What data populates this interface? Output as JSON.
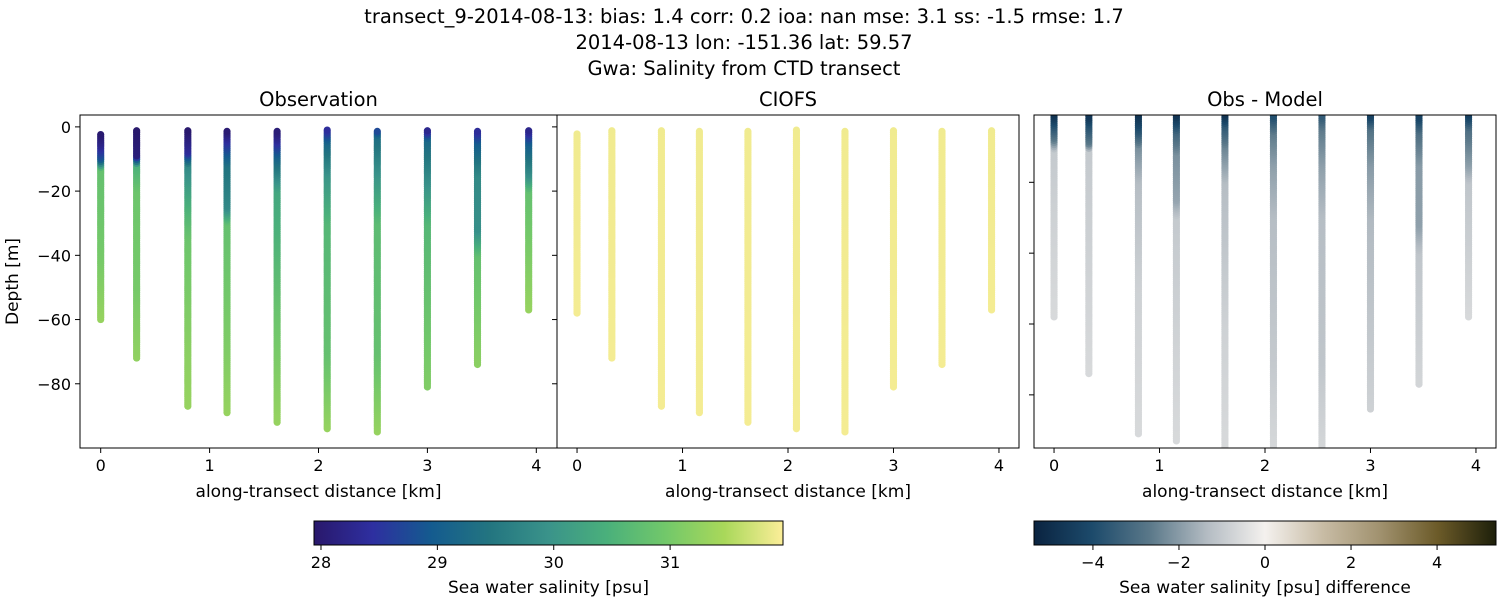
{
  "title_lines": [
    "transect_9-2014-08-13: bias: 1.4  corr: 0.2  ioa: nan  mse: 3.1  ss: -1.5  rmse: 1.7",
    "2014-08-13 lon: -151.36 lat: 59.57",
    "Gwa: Salinity from CTD transect"
  ],
  "colors": {
    "salinity_cmap": [
      "#29186b",
      "#2e2fa0",
      "#145b8f",
      "#237580",
      "#3a938a",
      "#4ab07b",
      "#72c86a",
      "#a9d85a",
      "#fcee99"
    ],
    "difference_cmap": [
      "#0a2340",
      "#1c4a6b",
      "#5a7889",
      "#b4bcc3",
      "#f4f1ee",
      "#c8bca5",
      "#a0916e",
      "#6b5a28",
      "#1d1f0a"
    ]
  },
  "chart_data": [
    {
      "type": "scatter",
      "title": "Observation",
      "xlabel": "along-transect distance [km]",
      "ylabel": "Depth [m]",
      "xlim": [
        -0.19,
        4.19
      ],
      "ylim": [
        -100,
        3.7
      ],
      "xticks": [
        0,
        1,
        2,
        3,
        4
      ],
      "yticks": [
        0,
        -20,
        -40,
        -60,
        -80
      ],
      "ytick_labels": [
        "0",
        "−20",
        "−40",
        "−60",
        "−80"
      ],
      "color_variable": "salinity",
      "casts": [
        {
          "x": 0.0,
          "profile": [
            [
              -2,
              27.95
            ],
            [
              -6,
              28.3
            ],
            [
              -10,
              28.9
            ],
            [
              -13,
              30.8
            ],
            [
              -40,
              31.0
            ],
            [
              -60,
              31.3
            ]
          ]
        },
        {
          "x": 0.33,
          "profile": [
            [
              -1,
              27.95
            ],
            [
              -9,
              28.1
            ],
            [
              -12,
              30.5
            ],
            [
              -20,
              30.9
            ],
            [
              -50,
              31.0
            ],
            [
              -72,
              31.25
            ]
          ]
        },
        {
          "x": 0.8,
          "profile": [
            [
              -1,
              27.95
            ],
            [
              -8,
              28.4
            ],
            [
              -12,
              29.8
            ],
            [
              -25,
              30.5
            ],
            [
              -35,
              30.9
            ],
            [
              -70,
              31.2
            ],
            [
              -87,
              31.3
            ]
          ]
        },
        {
          "x": 1.16,
          "profile": [
            [
              -1,
              27.95
            ],
            [
              -5,
              28.5
            ],
            [
              -12,
              29.4
            ],
            [
              -25,
              29.8
            ],
            [
              -30,
              30.8
            ],
            [
              -70,
              31.1
            ],
            [
              -89,
              31.3
            ]
          ]
        },
        {
          "x": 1.62,
          "profile": [
            [
              -1,
              28.0
            ],
            [
              -4,
              28.3
            ],
            [
              -10,
              29.2
            ],
            [
              -20,
              30.3
            ],
            [
              -60,
              30.9
            ],
            [
              -92,
              31.3
            ]
          ]
        },
        {
          "x": 2.08,
          "profile": [
            [
              -1,
              28.4
            ],
            [
              -5,
              29.2
            ],
            [
              -15,
              30.0
            ],
            [
              -30,
              30.6
            ],
            [
              -70,
              30.8
            ],
            [
              -94,
              31.3
            ]
          ]
        },
        {
          "x": 2.54,
          "profile": [
            [
              -1,
              28.6
            ],
            [
              -3,
              29.3
            ],
            [
              -15,
              30.0
            ],
            [
              -30,
              30.7
            ],
            [
              -70,
              30.8
            ],
            [
              -95,
              31.3
            ]
          ]
        },
        {
          "x": 3.0,
          "profile": [
            [
              -1,
              28.2
            ],
            [
              -4,
              29.2
            ],
            [
              -15,
              29.8
            ],
            [
              -30,
              30.6
            ],
            [
              -81,
              31.1
            ]
          ]
        },
        {
          "x": 3.46,
          "profile": [
            [
              -1,
              28.3
            ],
            [
              -5,
              29.0
            ],
            [
              -15,
              29.8
            ],
            [
              -32,
              29.9
            ],
            [
              -40,
              30.8
            ],
            [
              -74,
              31.2
            ]
          ]
        },
        {
          "x": 3.93,
          "profile": [
            [
              -1,
              28.2
            ],
            [
              -5,
              29.0
            ],
            [
              -15,
              29.9
            ],
            [
              -20,
              30.8
            ],
            [
              -57,
              31.3
            ]
          ]
        }
      ]
    },
    {
      "type": "scatter",
      "title": "CIOFS",
      "xlabel": "along-transect distance [km]",
      "xlim": [
        -0.19,
        4.19
      ],
      "ylim": [
        -100,
        3.7
      ],
      "xticks": [
        0,
        1,
        2,
        3,
        4
      ],
      "yticks": [
        0,
        -20,
        -40,
        -60,
        -80
      ],
      "color_variable": "salinity",
      "casts": [
        {
          "x": 0.0,
          "profile": [
            [
              -2,
              31.9
            ],
            [
              -58,
              31.92
            ]
          ]
        },
        {
          "x": 0.33,
          "profile": [
            [
              -1,
              31.9
            ],
            [
              -72,
              31.92
            ]
          ]
        },
        {
          "x": 0.8,
          "profile": [
            [
              -1,
              31.9
            ],
            [
              -87,
              31.92
            ]
          ]
        },
        {
          "x": 1.16,
          "profile": [
            [
              -1,
              31.9
            ],
            [
              -89,
              31.92
            ]
          ]
        },
        {
          "x": 1.62,
          "profile": [
            [
              -1,
              31.9
            ],
            [
              -92,
              31.92
            ]
          ]
        },
        {
          "x": 2.08,
          "profile": [
            [
              -1,
              31.9
            ],
            [
              -94,
              31.92
            ]
          ]
        },
        {
          "x": 2.54,
          "profile": [
            [
              -1,
              31.9
            ],
            [
              -95,
              31.92
            ]
          ]
        },
        {
          "x": 3.0,
          "profile": [
            [
              -1,
              31.9
            ],
            [
              -81,
              31.92
            ]
          ]
        },
        {
          "x": 3.46,
          "profile": [
            [
              -1,
              31.9
            ],
            [
              -74,
              31.92
            ]
          ]
        },
        {
          "x": 3.93,
          "profile": [
            [
              -1,
              31.9
            ],
            [
              -57,
              31.92
            ]
          ]
        }
      ]
    },
    {
      "type": "scatter",
      "title": "Obs - Model",
      "xlabel": "along-transect distance [km]",
      "xlim": [
        -0.19,
        4.19
      ],
      "ylim": [
        -95,
        -1
      ],
      "xticks": [
        0,
        1,
        2,
        3,
        4
      ],
      "yticks": [
        -20,
        -40,
        -60,
        -80
      ],
      "color_variable": "difference",
      "casts": [
        {
          "x": 0.0,
          "profile": [
            [
              -1,
              -4.8
            ],
            [
              -4,
              -3.8
            ],
            [
              -8,
              -2.6
            ],
            [
              -11,
              -1.0
            ],
            [
              -30,
              -0.8
            ],
            [
              -58,
              -0.6
            ]
          ]
        },
        {
          "x": 0.33,
          "profile": [
            [
              -1,
              -4.8
            ],
            [
              -4,
              -3.8
            ],
            [
              -9,
              -2.6
            ],
            [
              -11,
              -1.0
            ],
            [
              -40,
              -0.8
            ],
            [
              -74,
              -0.6
            ]
          ]
        },
        {
          "x": 0.8,
          "profile": [
            [
              -1,
              -4.8
            ],
            [
              -6,
              -3.6
            ],
            [
              -10,
              -2.2
            ],
            [
              -20,
              -1.3
            ],
            [
              -50,
              -0.8
            ],
            [
              -91,
              -0.6
            ]
          ]
        },
        {
          "x": 1.16,
          "profile": [
            [
              -1,
              -4.8
            ],
            [
              -6,
              -3.2
            ],
            [
              -12,
              -2.2
            ],
            [
              -25,
              -1.8
            ],
            [
              -30,
              -1.0
            ],
            [
              -60,
              -0.8
            ],
            [
              -93,
              -0.6
            ]
          ]
        },
        {
          "x": 1.62,
          "profile": [
            [
              -1,
              -4.8
            ],
            [
              -4,
              -3.6
            ],
            [
              -10,
              -2.4
            ],
            [
              -20,
              -1.3
            ],
            [
              -60,
              -0.8
            ],
            [
              -97,
              -0.6
            ]
          ]
        },
        {
          "x": 2.08,
          "profile": [
            [
              -1,
              -4.0
            ],
            [
              -6,
              -2.6
            ],
            [
              -15,
              -1.9
            ],
            [
              -30,
              -1.3
            ],
            [
              -70,
              -1.0
            ],
            [
              -98,
              -0.6
            ]
          ]
        },
        {
          "x": 2.54,
          "profile": [
            [
              -1,
              -3.6
            ],
            [
              -5,
              -2.6
            ],
            [
              -15,
              -1.9
            ],
            [
              -30,
              -1.3
            ],
            [
              -70,
              -1.1
            ],
            [
              -98,
              -0.6
            ]
          ]
        },
        {
          "x": 3.0,
          "profile": [
            [
              -1,
              -4.4
            ],
            [
              -5,
              -2.8
            ],
            [
              -15,
              -2.0
            ],
            [
              -30,
              -1.4
            ],
            [
              -84,
              -0.8
            ]
          ]
        },
        {
          "x": 3.46,
          "profile": [
            [
              -1,
              -4.4
            ],
            [
              -6,
              -2.9
            ],
            [
              -15,
              -2.0
            ],
            [
              -32,
              -1.9
            ],
            [
              -40,
              -1.1
            ],
            [
              -77,
              -0.7
            ]
          ]
        },
        {
          "x": 3.93,
          "profile": [
            [
              -1,
              -4.4
            ],
            [
              -5,
              -2.9
            ],
            [
              -15,
              -1.9
            ],
            [
              -20,
              -1.1
            ],
            [
              -58,
              -0.6
            ]
          ]
        }
      ]
    }
  ],
  "colorbars": [
    {
      "label": "Sea water salinity [psu]",
      "range": [
        27.94,
        31.97
      ],
      "ticks": [
        28,
        29,
        30,
        31
      ],
      "tick_labels": [
        "28",
        "29",
        "30",
        "31"
      ]
    },
    {
      "label": "Sea water salinity [psu] difference",
      "range": [
        -5.37,
        5.37
      ],
      "ticks": [
        -4,
        -2,
        0,
        2,
        4
      ],
      "tick_labels": [
        "−4",
        "−2",
        "0",
        "2",
        "4"
      ]
    }
  ]
}
